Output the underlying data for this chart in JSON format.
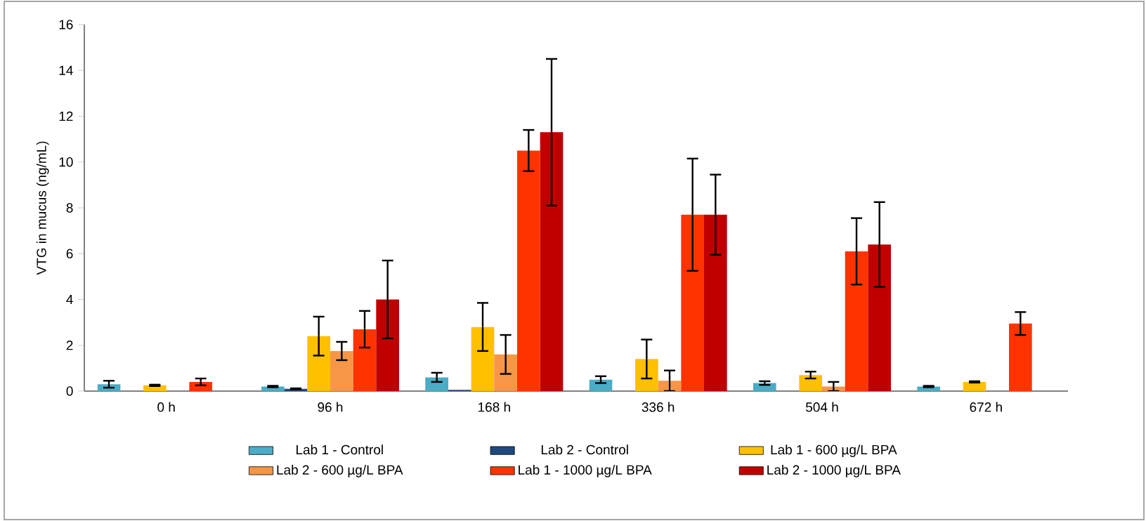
{
  "chart_data": {
    "type": "bar",
    "ylabel": "VTG in mucus (ng/mL)",
    "categories": [
      "0 h",
      "96 h",
      "168 h",
      "336 h",
      "504 h",
      "672 h"
    ],
    "series": [
      {
        "name": "Lab 1 - Control",
        "color": "#4bacc6",
        "values": [
          0.3,
          0.2,
          0.6,
          0.5,
          0.35,
          0.2
        ],
        "errors": [
          0.15,
          0.03,
          0.2,
          0.15,
          0.08,
          0.03
        ]
      },
      {
        "name": "Lab 2 - Control",
        "color": "#1f497d",
        "values": [
          null,
          0.1,
          0.05,
          null,
          null,
          null
        ],
        "errors": [
          null,
          0.02,
          null,
          null,
          null,
          null
        ]
      },
      {
        "name": "Lab 1 - 600 µg/L BPA",
        "color": "#ffc000",
        "values": [
          0.25,
          2.4,
          2.8,
          1.4,
          0.7,
          0.4
        ],
        "errors": [
          0.03,
          0.85,
          1.05,
          0.85,
          0.15,
          0.03
        ]
      },
      {
        "name": "Lab 2 - 600 µg/L BPA",
        "color": "#f79646",
        "values": [
          null,
          1.75,
          1.6,
          0.45,
          0.2,
          null
        ],
        "errors": [
          null,
          0.4,
          0.85,
          0.45,
          0.2,
          null
        ]
      },
      {
        "name": "Lab 1 - 1000 µg/L BPA",
        "color": "#ff3300",
        "values": [
          0.4,
          2.7,
          10.5,
          7.7,
          6.1,
          2.95
        ],
        "errors": [
          0.15,
          0.8,
          0.9,
          2.45,
          1.45,
          0.5
        ]
      },
      {
        "name": "Lab 2 - 1000 µg/L BPA",
        "color": "#c00000",
        "values": [
          null,
          4.0,
          11.3,
          7.7,
          6.4,
          null
        ],
        "errors": [
          null,
          1.7,
          3.2,
          1.75,
          1.85,
          null
        ]
      }
    ],
    "ylim": [
      0,
      16
    ],
    "yticks": [
      0,
      2,
      4,
      6,
      8,
      10,
      12,
      14,
      16
    ],
    "grid": false,
    "legend": "bottom"
  }
}
